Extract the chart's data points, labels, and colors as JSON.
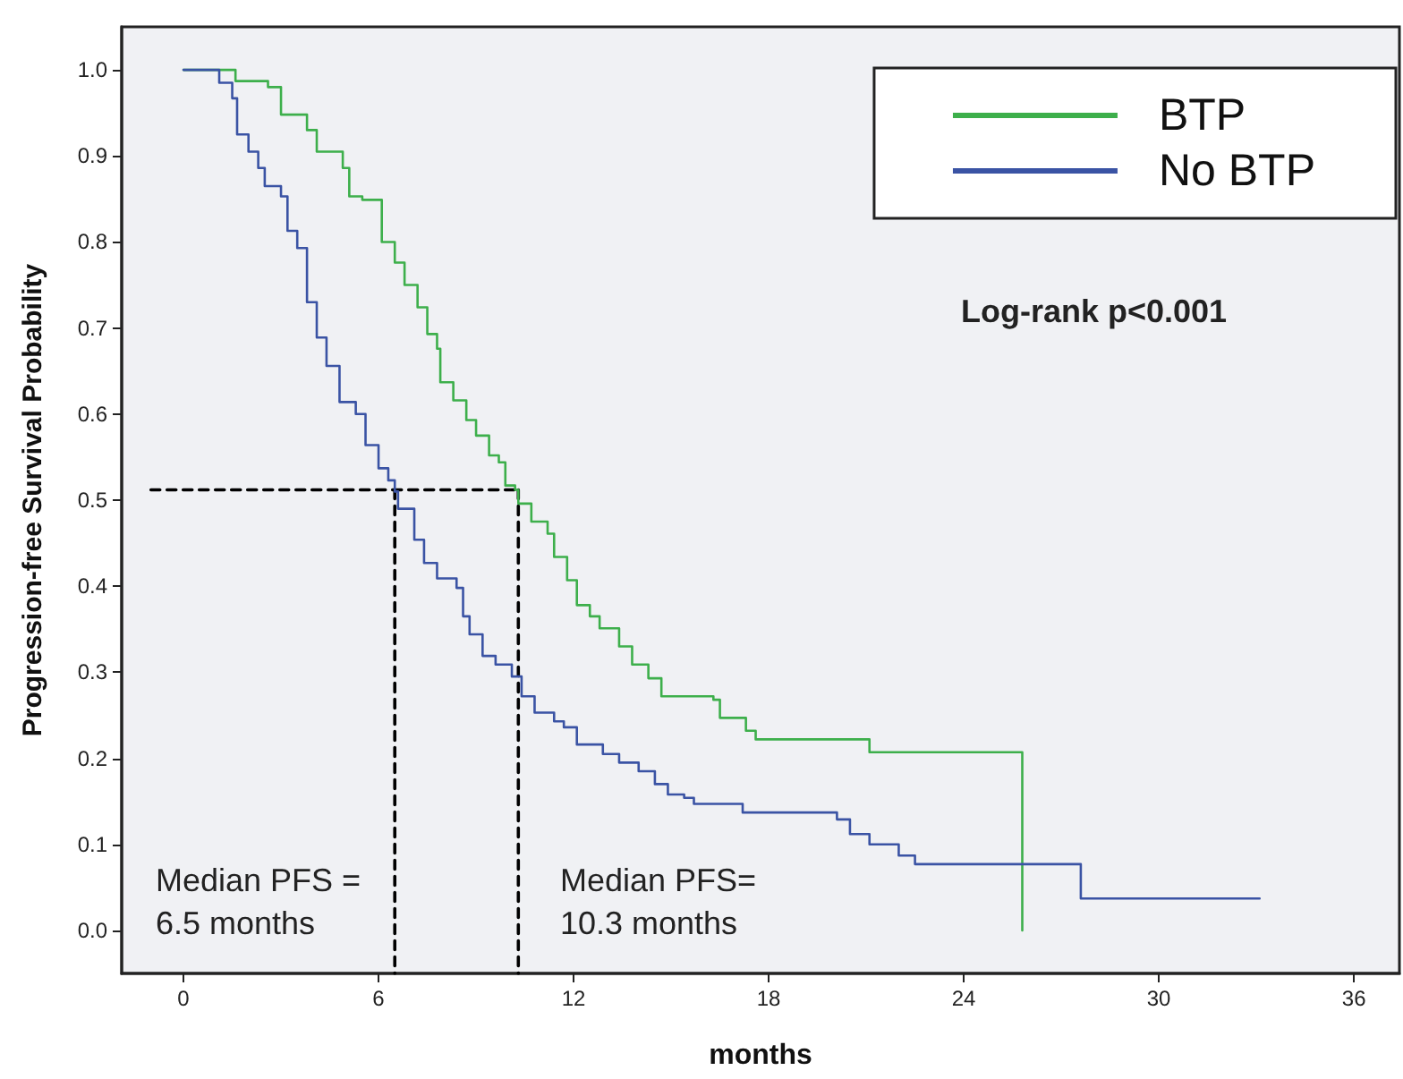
{
  "chart_data": {
    "type": "step",
    "xlabel": "months",
    "ylabel": "Progression-free Survival Probability",
    "xlim": [
      -1.9,
      37.4
    ],
    "ylim": [
      -0.05,
      1.05
    ],
    "xticks": [
      0,
      6,
      12,
      18,
      24,
      30,
      36
    ],
    "yticks": [
      {
        "value": 0,
        "label": "0.0"
      },
      {
        "value": 0.1,
        "label": "0.1"
      },
      {
        "value": 0.2,
        "label": "0.2"
      },
      {
        "value": 0.3,
        "label": "0.3"
      },
      {
        "value": 0.4,
        "label": "0.4"
      },
      {
        "value": 0.5,
        "label": "0.5"
      },
      {
        "value": 0.6,
        "label": "0.6"
      },
      {
        "value": 0.7,
        "label": "0.7"
      },
      {
        "value": 0.8,
        "label": "0.8"
      },
      {
        "value": 0.9,
        "label": "0.9"
      },
      {
        "value": 1,
        "label": "1.0"
      }
    ],
    "grid": false,
    "legend": "top right",
    "marker": "none",
    "line_style": "solid",
    "series": [
      {
        "name": "BTP",
        "color": "#3daf4b",
        "x": [
          0,
          1.6,
          2.6,
          3.0,
          3.8,
          4.1,
          4.9,
          5.1,
          5.5,
          6.1,
          6.5,
          6.8,
          7.2,
          7.5,
          7.8,
          7.9,
          8.3,
          8.7,
          9.0,
          9.4,
          9.7,
          9.9,
          10.2,
          10.3,
          10.7,
          11.2,
          11.4,
          11.8,
          12.1,
          12.5,
          12.8,
          13.4,
          13.8,
          14.3,
          14.7,
          16.3,
          16.5,
          17.3,
          17.6,
          21.1,
          25.8
        ],
        "values": [
          1.0,
          0.987,
          0.98,
          0.948,
          0.93,
          0.905,
          0.886,
          0.853,
          0.849,
          0.8,
          0.776,
          0.75,
          0.724,
          0.693,
          0.676,
          0.637,
          0.616,
          0.593,
          0.575,
          0.552,
          0.544,
          0.517,
          0.512,
          0.496,
          0.475,
          0.461,
          0.434,
          0.407,
          0.378,
          0.365,
          0.351,
          0.33,
          0.309,
          0.293,
          0.272,
          0.268,
          0.247,
          0.232,
          0.222,
          0.207,
          0.0
        ]
      },
      {
        "name": "No BTP",
        "color": "#3a53a4",
        "x": [
          0,
          1.1,
          1.5,
          1.65,
          2.0,
          2.3,
          2.5,
          3.0,
          3.2,
          3.5,
          3.8,
          4.1,
          4.4,
          4.8,
          5.3,
          5.6,
          6.0,
          6.3,
          6.5,
          6.6,
          7.1,
          7.4,
          7.8,
          8.4,
          8.6,
          8.8,
          9.2,
          9.6,
          10.1,
          10.4,
          10.8,
          11.4,
          11.7,
          12.1,
          12.9,
          13.4,
          14.0,
          14.5,
          14.9,
          15.4,
          15.7,
          17.2,
          20.1,
          20.5,
          21.1,
          22.0,
          22.5,
          27.6,
          33.1
        ],
        "values": [
          1.0,
          0.985,
          0.967,
          0.925,
          0.905,
          0.886,
          0.865,
          0.853,
          0.813,
          0.793,
          0.73,
          0.689,
          0.656,
          0.614,
          0.6,
          0.564,
          0.537,
          0.523,
          0.51,
          0.49,
          0.454,
          0.427,
          0.409,
          0.398,
          0.365,
          0.344,
          0.319,
          0.309,
          0.295,
          0.272,
          0.253,
          0.243,
          0.236,
          0.216,
          0.205,
          0.195,
          0.185,
          0.17,
          0.158,
          0.154,
          0.147,
          0.137,
          0.129,
          0.112,
          0.1,
          0.087,
          0.077,
          0.037,
          0.037
        ]
      },
      {
        "type": "line",
        "color": "#000000",
        "line_style": "dashed",
        "x": [
          -1,
          10.3
        ],
        "values": [
          0.512,
          0.512
        ]
      },
      {
        "type": "line",
        "color": "#000000",
        "line_style": "dashed",
        "x": [
          6.5,
          6.5
        ],
        "values": [
          0.512,
          -0.05
        ]
      },
      {
        "type": "line",
        "color": "#000000",
        "line_style": "dashed",
        "x": [
          10.3,
          10.3
        ],
        "values": [
          0.512,
          -0.05
        ]
      }
    ],
    "annotations": [
      "Log-rank p<0.001",
      "Median PFS =\n6.5 months",
      "Median PFS=\n10.3 months"
    ]
  }
}
